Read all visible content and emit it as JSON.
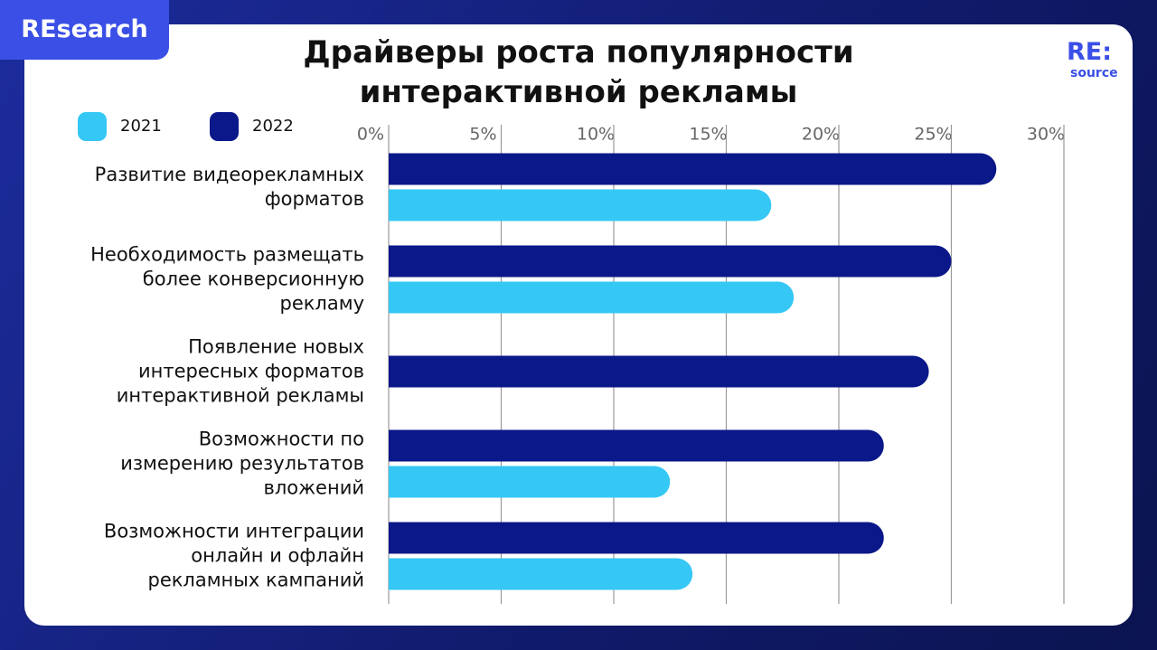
{
  "badge": "REsearch",
  "logo": {
    "main": "RE:",
    "sub": "source"
  },
  "chart_data": {
    "type": "hbar",
    "title": "Драйверы роста популярности\nинтерактивной рекламы",
    "categories": [
      "Развитие видеорекламных\nформатов",
      "Необходимость размещать\nболее конверсионную\nрекламу",
      "Появление новых\nинтересных форматов\nинтерактивной рекламы",
      "Возможности по\nизмерению результатов\nвложений",
      "Возможности интеграции\nонлайн и офлайн\nрекламных кампаний"
    ],
    "series": [
      {
        "name": "2021",
        "color": "#35c8f5",
        "values": [
          17,
          18,
          null,
          12.5,
          13.5
        ]
      },
      {
        "name": "2022",
        "color": "#0b1889",
        "values": [
          27,
          25,
          24,
          22,
          22
        ]
      }
    ],
    "xlim": [
      0,
      30
    ],
    "xticks": [
      {
        "value": 0,
        "label": "0%"
      },
      {
        "value": 5,
        "label": "5%"
      },
      {
        "value": 10,
        "label": "10%"
      },
      {
        "value": 15,
        "label": "15%"
      },
      {
        "value": 20,
        "label": "20%"
      },
      {
        "value": 25,
        "label": "25%"
      },
      {
        "value": 30,
        "label": "30%"
      }
    ],
    "grid": true
  }
}
